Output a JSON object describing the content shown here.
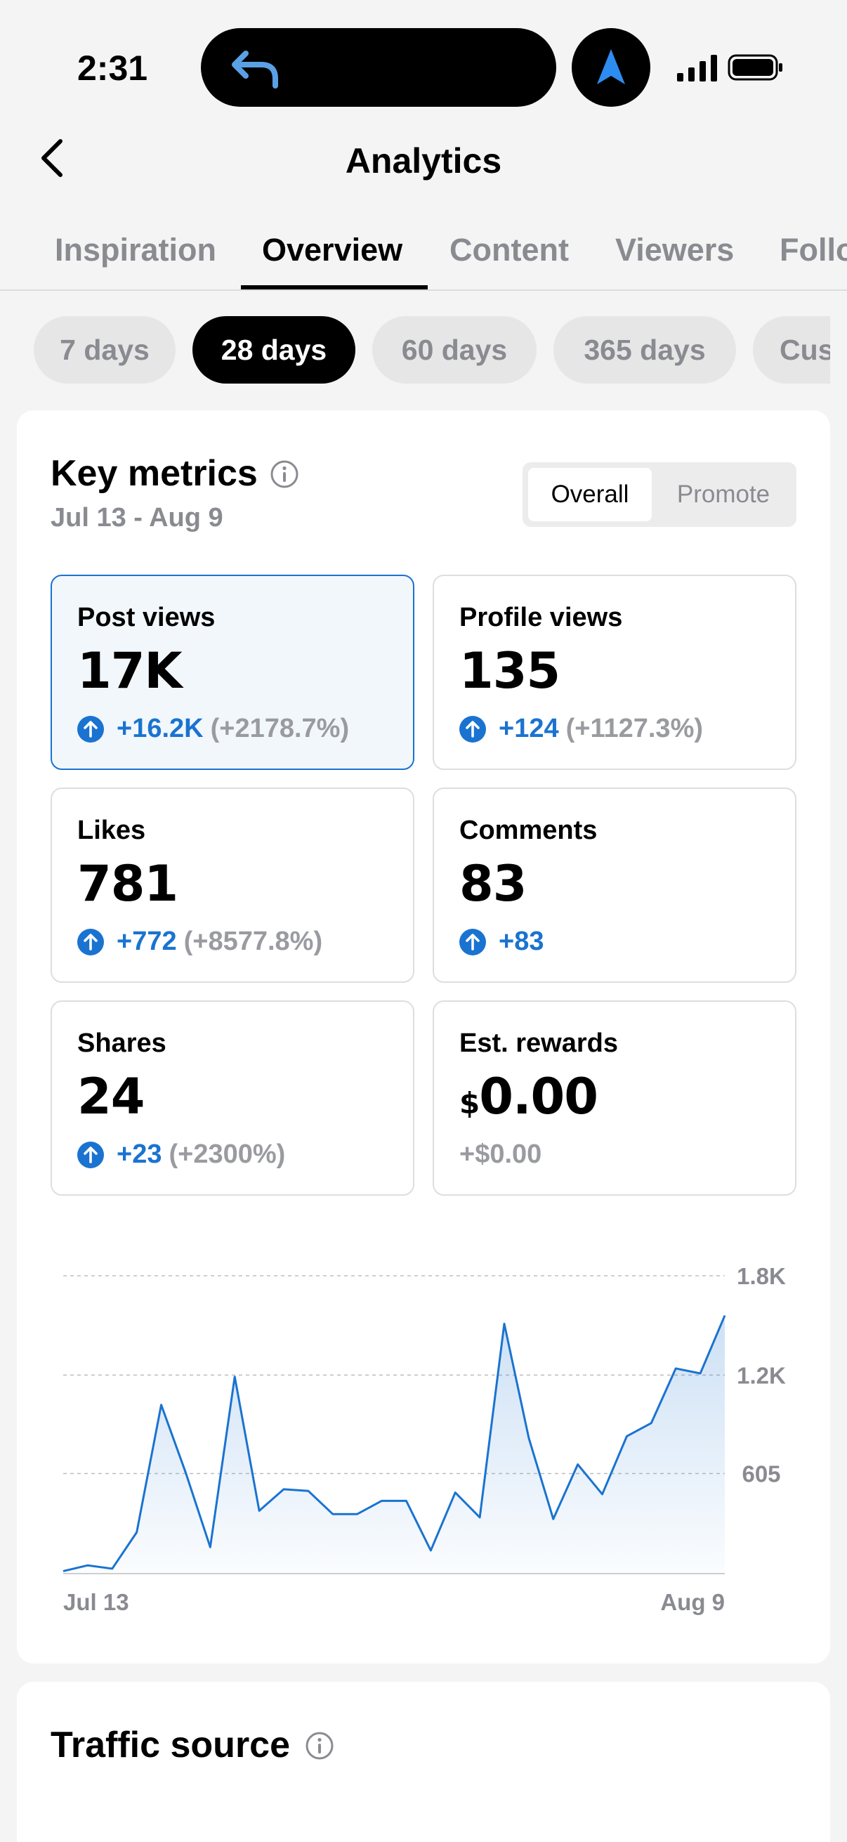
{
  "status_bar": {
    "time": "2:31"
  },
  "header": {
    "title": "Analytics"
  },
  "tabs": [
    {
      "label": "Inspiration"
    },
    {
      "label": "Overview"
    },
    {
      "label": "Content"
    },
    {
      "label": "Viewers"
    },
    {
      "label": "Follo"
    }
  ],
  "active_tab": "Overview",
  "periods": [
    {
      "label": "7 days"
    },
    {
      "label": "28 days"
    },
    {
      "label": "60 days"
    },
    {
      "label": "365 days"
    },
    {
      "label": "Cus"
    }
  ],
  "active_period": "28 days",
  "key_metrics": {
    "title": "Key metrics",
    "date_range": "Jul 13 - Aug 9",
    "toggle": {
      "overall": "Overall",
      "promote": "Promote",
      "selected": "Overall"
    },
    "cards": [
      {
        "label": "Post views",
        "value": "17K",
        "delta": "+16.2K",
        "pct": "(+2178.7%)"
      },
      {
        "label": "Profile views",
        "value": "135",
        "delta": "+124",
        "pct": "(+1127.3%)"
      },
      {
        "label": "Likes",
        "value": "781",
        "delta": "+772",
        "pct": "(+8577.8%)"
      },
      {
        "label": "Comments",
        "value": "83",
        "delta": "+83",
        "pct": ""
      },
      {
        "label": "Shares",
        "value": "24",
        "delta": "+23",
        "pct": "(+2300%)"
      },
      {
        "label": "Est. rewards",
        "currency": "$",
        "value": "0.00",
        "delta": "+$0.00",
        "pct": ""
      }
    ],
    "selected_card": "Post views"
  },
  "chart_data": {
    "type": "area",
    "metric": "Post views",
    "x_start_label": "Jul 13",
    "x_end_label": "Aug 9",
    "y_tick_labels": [
      "1.8K",
      "1.2K",
      "605"
    ],
    "y_ticks": [
      1800,
      1200,
      605
    ],
    "ylim": [
      0,
      1800
    ],
    "grid": true,
    "line_color": "#1a73d0",
    "values": [
      15,
      50,
      30,
      250,
      1020,
      610,
      160,
      1190,
      380,
      510,
      500,
      360,
      360,
      440,
      440,
      140,
      490,
      340,
      1510,
      820,
      330,
      660,
      480,
      830,
      910,
      1240,
      1210,
      1560
    ]
  },
  "traffic_source": {
    "title": "Traffic source"
  },
  "colors": {
    "accent": "#1a73d0",
    "muted": "#8a8b91",
    "background": "#f4f4f4"
  }
}
